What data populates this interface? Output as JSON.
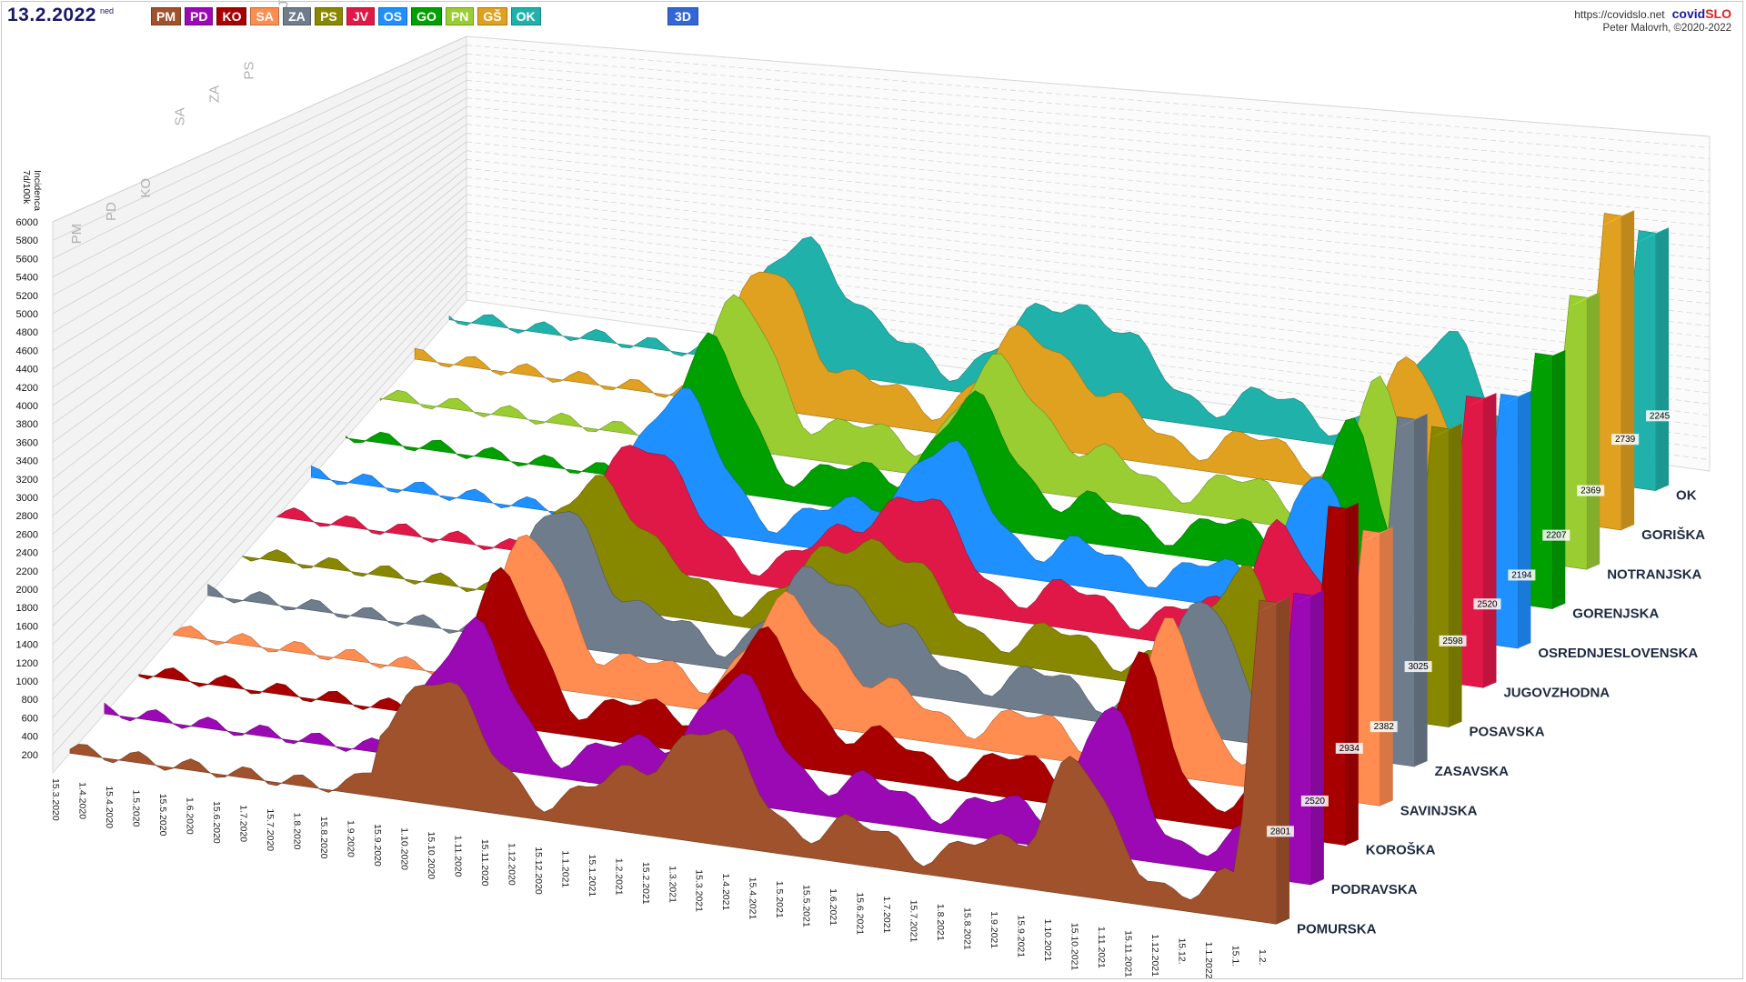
{
  "header": {
    "date": "13.2.2022",
    "weekday": "ned",
    "view_button": "3D",
    "url": "https://covidslo.net",
    "brand_a": "covid",
    "brand_b": "SLO",
    "credit": "Peter Malovrh, ©2020-2022"
  },
  "region_buttons": [
    {
      "code": "PM",
      "color": "#a0522d"
    },
    {
      "code": "PD",
      "color": "#9b09b5"
    },
    {
      "code": "KO",
      "color": "#a80000"
    },
    {
      "code": "SA",
      "color": "#ff8c50"
    },
    {
      "code": "ZA",
      "color": "#6f7c8c"
    },
    {
      "code": "PS",
      "color": "#888800"
    },
    {
      "code": "JV",
      "color": "#e01848"
    },
    {
      "code": "OS",
      "color": "#1e90ff"
    },
    {
      "code": "GO",
      "color": "#00a000"
    },
    {
      "code": "PN",
      "color": "#9acd32"
    },
    {
      "code": "GŠ",
      "color": "#e0a020"
    },
    {
      "code": "OK",
      "color": "#20b2aa"
    }
  ],
  "chart_data": {
    "type": "area",
    "ylabel_line1": "Incidenca",
    "ylabel_line2": "7d/100k",
    "ylim": [
      0,
      6000
    ],
    "y_ticks": [
      200,
      400,
      600,
      800,
      1000,
      1200,
      1400,
      1600,
      1800,
      2000,
      2200,
      2400,
      2600,
      2800,
      3000,
      3200,
      3400,
      3600,
      3800,
      4000,
      4200,
      4400,
      4600,
      4800,
      5000,
      5200,
      5400,
      5600,
      5800,
      6000
    ],
    "x_ticks": [
      "15.3.2020",
      "1.4.2020",
      "15.4.2020",
      "1.5.2020",
      "15.5.2020",
      "1.6.2020",
      "15.6.2020",
      "1.7.2020",
      "15.7.2020",
      "1.8.2020",
      "15.8.2020",
      "1.9.2020",
      "15.9.2020",
      "1.10.2020",
      "15.10.2020",
      "1.11.2020",
      "15.11.2020",
      "1.12.2020",
      "15.12.2020",
      "1.1.2021",
      "15.1.2021",
      "1.2.2021",
      "15.2.2021",
      "1.3.2021",
      "15.3.2021",
      "1.4.2021",
      "15.4.2021",
      "1.5.2021",
      "15.5.2021",
      "1.6.2021",
      "15.6.2021",
      "1.7.2021",
      "15.7.2021",
      "1.8.2021",
      "15.8.2021",
      "1.9.2021",
      "15.9.2021",
      "1.10.2021",
      "15.10.2021",
      "1.11.2021",
      "15.11.2021",
      "1.12.2021",
      "15.12.",
      "1.1.2022",
      "15.1.",
      "1.2."
    ],
    "series": [
      {
        "code": "PM",
        "name": "POMURSKA",
        "color": "#a0522d",
        "latest": 2801
      },
      {
        "code": "PD",
        "name": "PODRAVSKA",
        "color": "#9b09b5",
        "latest": 2520
      },
      {
        "code": "KO",
        "name": "KOROŠKA",
        "color": "#a80000",
        "latest": 2934
      },
      {
        "code": "SA",
        "name": "SAVINJSKA",
        "color": "#ff8c50",
        "latest": 2382
      },
      {
        "code": "ZA",
        "name": "ZASAVSKA",
        "color": "#6f7c8c",
        "latest": 3025
      },
      {
        "code": "PS",
        "name": "POSAVSKA",
        "color": "#888800",
        "latest": 2598
      },
      {
        "code": "JV",
        "name": "JUGOVZHODNA",
        "color": "#e01848",
        "latest": 2520
      },
      {
        "code": "OS",
        "name": "OSREDNJESLOVENSKA",
        "color": "#1e90ff",
        "latest": 2194
      },
      {
        "code": "GO",
        "name": "GORENJSKA",
        "color": "#00a000",
        "latest": 2207
      },
      {
        "code": "PN",
        "name": "NOTRANJSKA",
        "color": "#9acd32",
        "latest": 2369
      },
      {
        "code": "GŠ",
        "name": "GORIŠKA",
        "color": "#e0a020",
        "latest": 2739
      },
      {
        "code": "OK",
        "name": "OK",
        "color": "#20b2aa",
        "latest": 2245
      }
    ]
  }
}
